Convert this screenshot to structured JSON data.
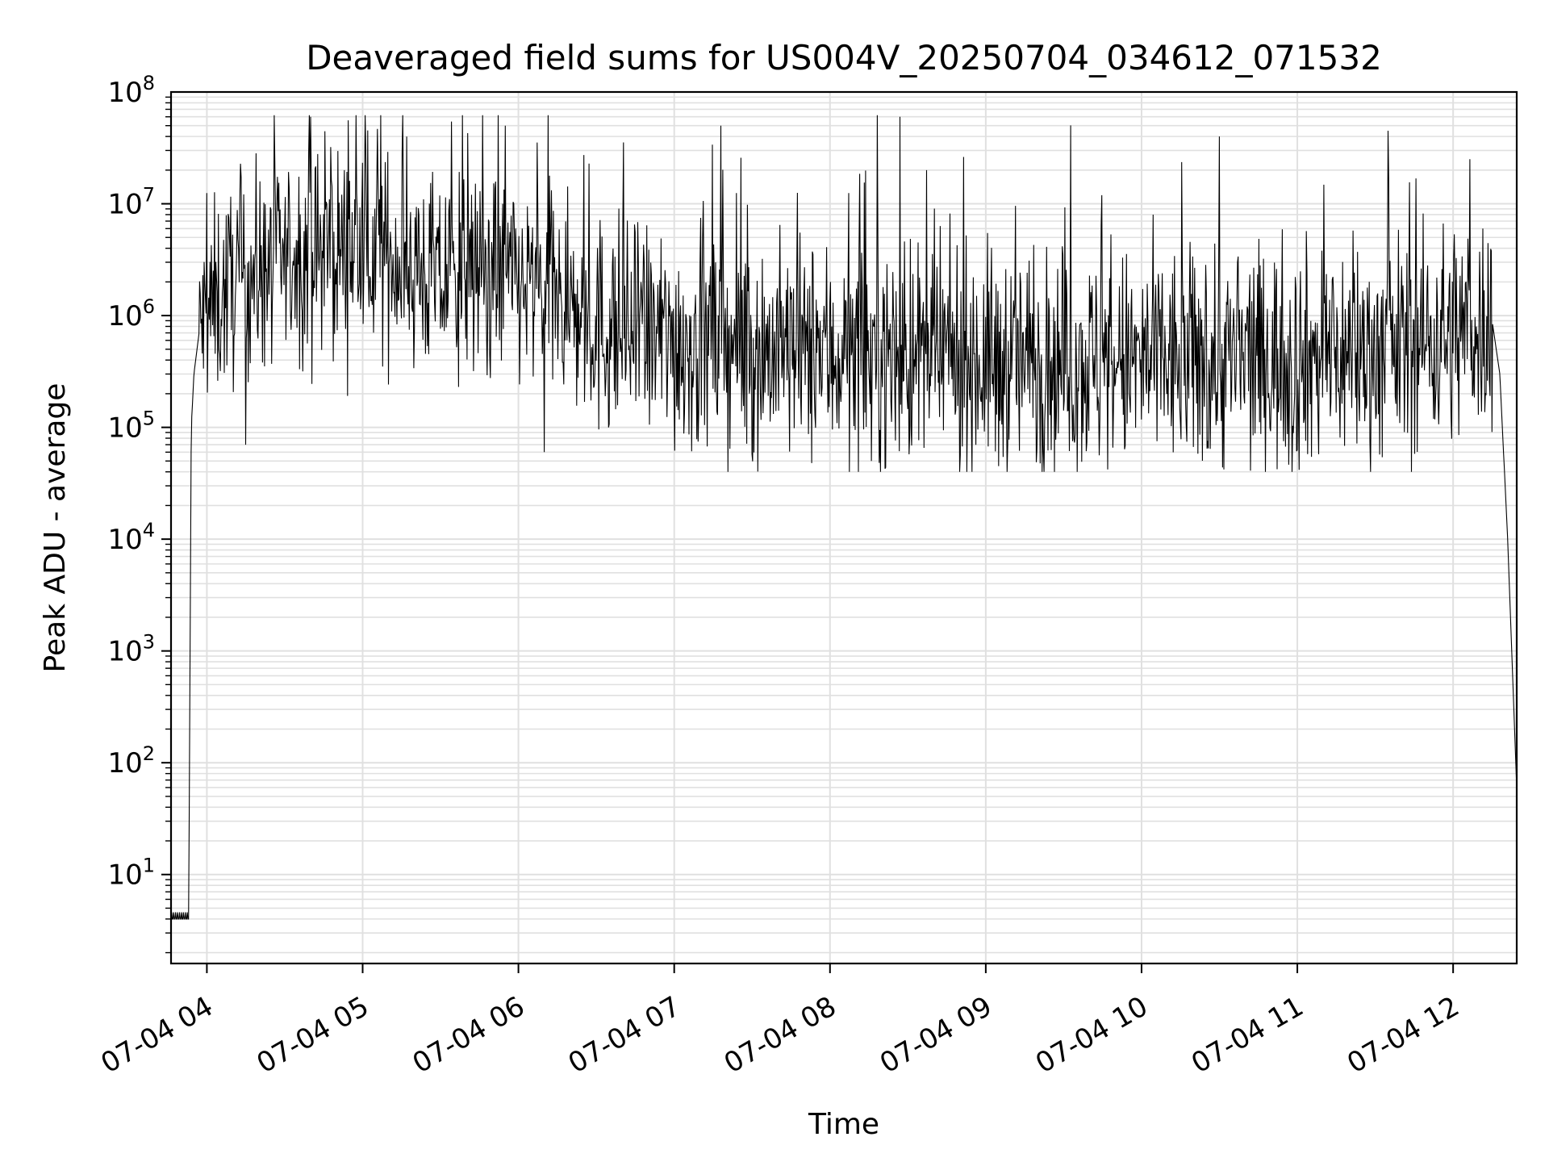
{
  "chart_data": {
    "type": "line",
    "title": "Deaveraged field sums for US004V_20250704_034612_071532",
    "xlabel": "Time",
    "ylabel": "Peak ADU - average",
    "yscale": "log",
    "ylim": [
      1.6,
      100000000
    ],
    "xlim": [
      "07-04 03:46:12",
      "07-04 12:24:30"
    ],
    "grid": true,
    "line_color": "#000000",
    "grid_color": "#e0e0e0",
    "x_ticks": [
      {
        "label": "07-04 04",
        "value": "07-04 04:00"
      },
      {
        "label": "07-04 05",
        "value": "07-04 05:00"
      },
      {
        "label": "07-04 06",
        "value": "07-04 06:00"
      },
      {
        "label": "07-04 07",
        "value": "07-04 07:00"
      },
      {
        "label": "07-04 08",
        "value": "07-04 08:00"
      },
      {
        "label": "07-04 09",
        "value": "07-04 09:00"
      },
      {
        "label": "07-04 10",
        "value": "07-04 10:00"
      },
      {
        "label": "07-04 11",
        "value": "07-04 11:00"
      },
      {
        "label": "07-04 12",
        "value": "07-04 12:00"
      }
    ],
    "y_ticks": [
      {
        "mantissa": "10",
        "exponent": "1",
        "value": 10
      },
      {
        "mantissa": "10",
        "exponent": "2",
        "value": 100
      },
      {
        "mantissa": "10",
        "exponent": "3",
        "value": 1000
      },
      {
        "mantissa": "10",
        "exponent": "4",
        "value": 10000
      },
      {
        "mantissa": "10",
        "exponent": "5",
        "value": 100000
      },
      {
        "mantissa": "10",
        "exponent": "6",
        "value": 1000000
      },
      {
        "mantissa": "10",
        "exponent": "7",
        "value": 10000000
      },
      {
        "mantissa": "10",
        "exponent": "8",
        "value": 100000000
      }
    ],
    "series": [
      {
        "x": [
          "07-04 03:46:12",
          "07-04 03:53:00",
          "07-04 03:54:00",
          "07-04 03:55:00",
          "07-04 03:57:00",
          "07-04 04:00:00",
          "07-04 04:10:00",
          "07-04 04:30:00",
          "07-04 04:50:00",
          "07-04 05:10:00",
          "07-04 05:30:00",
          "07-04 05:50:00",
          "07-04 06:10:00",
          "07-04 06:30:00",
          "07-04 07:00:00",
          "07-04 07:30:00",
          "07-04 08:00:00",
          "07-04 08:30:00",
          "07-04 09:00:00",
          "07-04 09:30:00",
          "07-04 10:00:00",
          "07-04 10:30:00",
          "07-04 11:00:00",
          "07-04 11:30:00",
          "07-04 12:00:00",
          "07-04 12:15:00",
          "07-04 12:18:00",
          "07-04 12:21:00",
          "07-04 12:24:30"
        ],
        "y": [
          4,
          4,
          100000,
          300000,
          700000,
          1000000,
          2000000,
          3000000,
          4000000,
          3500000,
          2000000,
          2500000,
          1500000,
          800000,
          600000,
          500000,
          450000,
          420000,
          400000,
          380000,
          370000,
          390000,
          420000,
          480000,
          700000,
          900000,
          300000,
          10000,
          60
        ],
        "spikes": [
          {
            "x": "07-04 04:40:00",
            "y": 60000000
          },
          {
            "x": "07-04 05:55:00",
            "y": 50000000
          },
          {
            "x": "07-04 07:18:00",
            "y": 50000000
          },
          {
            "x": "07-04 08:27:00",
            "y": 60000000
          },
          {
            "x": "07-04 10:30:00",
            "y": 40000000
          },
          {
            "x": "07-04 11:35:00",
            "y": 45000000
          }
        ],
        "dips": [
          {
            "x": "07-04 04:15:00",
            "y": 70000
          },
          {
            "x": "07-04 06:10:00",
            "y": 60000
          },
          {
            "x": "07-04 09:05:00",
            "y": 45000
          },
          {
            "x": "07-04 09:47:00",
            "y": 42000
          },
          {
            "x": "07-04 10:58:00",
            "y": 40000
          }
        ]
      }
    ]
  }
}
